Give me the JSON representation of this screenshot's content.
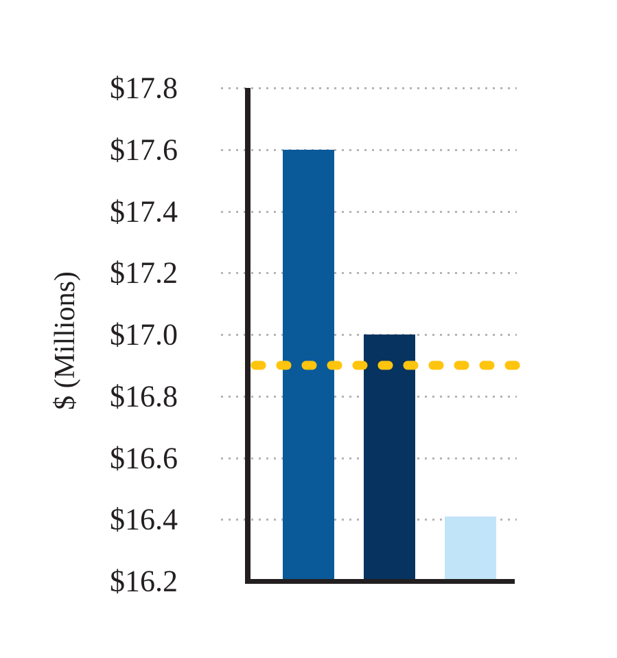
{
  "chart_data": {
    "type": "bar",
    "title": "",
    "ylabel": "$ (Millions)",
    "xlabel": "",
    "ylim": [
      16.2,
      17.8
    ],
    "yticks": [
      {
        "label": "$17.8",
        "value": 17.8
      },
      {
        "label": "$17.6",
        "value": 17.6
      },
      {
        "label": "$17.4",
        "value": 17.4
      },
      {
        "label": "$17.2",
        "value": 17.2
      },
      {
        "label": "$17.0",
        "value": 17.0
      },
      {
        "label": "$16.8",
        "value": 16.8
      },
      {
        "label": "$16.6",
        "value": 16.6
      },
      {
        "label": "$16.4",
        "value": 16.4
      },
      {
        "label": "$16.2",
        "value": 16.2
      }
    ],
    "categories": [
      "",
      "",
      ""
    ],
    "values": [
      17.6,
      17.0,
      16.41
    ],
    "bar_colors": [
      "#0a5a9a",
      "#06335f",
      "#c1e4f8"
    ],
    "reference_line": {
      "value": 16.9,
      "color": "#ffc40d",
      "style": "dashed-rounded"
    },
    "grid": "dotted horizontal",
    "grid_color": "#b4b4b6",
    "axis_color": "#231f20",
    "background_color": "#ffffff",
    "legend": "none"
  }
}
